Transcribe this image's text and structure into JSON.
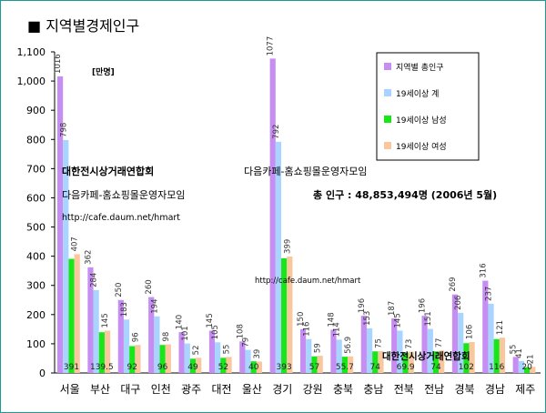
{
  "chart_data": {
    "type": "bar",
    "title": "■ 지역별경제인구",
    "unit_label": "[만명]",
    "categories": [
      "서울",
      "부산",
      "대구",
      "인천",
      "광주",
      "대전",
      "울산",
      "경기",
      "강원",
      "충북",
      "충남",
      "전북",
      "전남",
      "경북",
      "경남",
      "제주"
    ],
    "series": [
      {
        "name": "지역별 총인구",
        "color": "#c68ef2",
        "values": [
          1016,
          362,
          250,
          260,
          140,
          145,
          108,
          1077,
          150,
          148,
          196,
          187,
          196,
          269,
          316,
          55
        ]
      },
      {
        "name": "19세이상 계",
        "color": "#a9d4ff",
        "values": [
          798,
          284,
          183,
          194,
          101,
          105,
          79,
          792,
          116,
          114,
          153,
          145,
          151,
          206,
          237,
          41
        ]
      },
      {
        "name": "19세이상 남성",
        "color": "#19e619",
        "values": [
          391,
          139.5,
          92,
          96,
          49,
          52,
          40,
          393,
          57,
          55.7,
          74,
          69.9,
          74,
          102,
          116,
          20
        ]
      },
      {
        "name": "19세이상 여성",
        "color": "#f9c79e",
        "values": [
          407,
          145,
          96,
          98,
          52,
          55,
          39,
          399,
          59,
          56.9,
          75,
          73,
          77,
          106,
          121,
          21
        ]
      }
    ],
    "label_series_indices": [
      0,
      1,
      3
    ],
    "yticks": [
      "0",
      "100",
      "200",
      "300",
      "400",
      "500",
      "600",
      "700",
      "800",
      "900",
      "1,000",
      "1,100"
    ],
    "ylim": [
      0,
      1100
    ],
    "legend_position": "top-right",
    "annotations": {
      "club_name": "대한전시상거래연합회",
      "cafe_name": "다음카페-홈쇼핑몰운영자모임",
      "cafe_url": "http://cafe.daum.net/hmart",
      "total_population": "총 인구 : 48,853,494명 (2006년 5월)"
    },
    "colors": {
      "frame": "#1b9a96"
    }
  }
}
